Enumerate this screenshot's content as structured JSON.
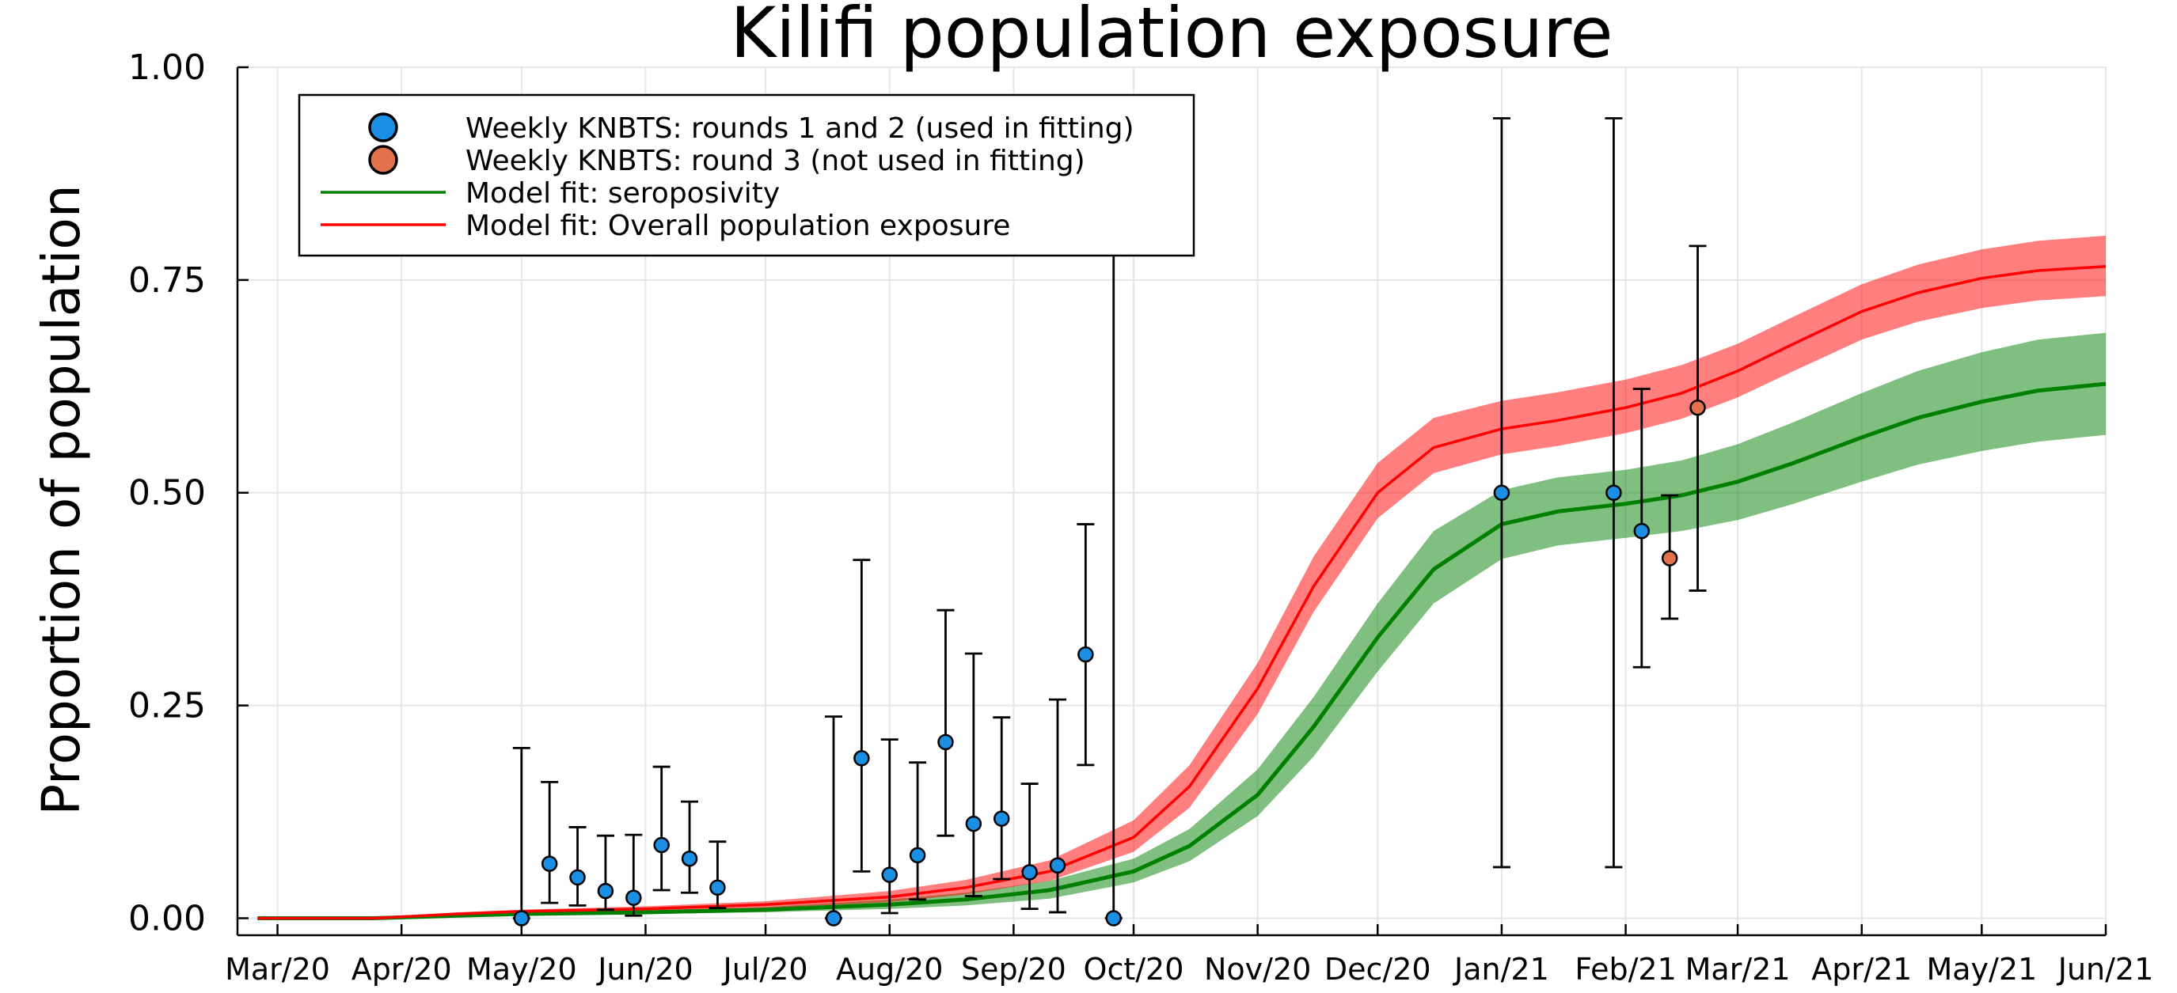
{
  "chart_data": {
    "type": "line",
    "title": "Kilifi population exposure",
    "xlabel": "",
    "ylabel": "Proportion of population",
    "xlim": [
      "2020-02-20",
      "2021-06-01"
    ],
    "ylim": [
      -0.02,
      1.0
    ],
    "x_ticks": [
      "2020-03-01",
      "2020-04-01",
      "2020-05-01",
      "2020-06-01",
      "2020-07-01",
      "2020-08-01",
      "2020-09-01",
      "2020-10-01",
      "2020-11-01",
      "2020-12-01",
      "2021-01-01",
      "2021-02-01",
      "2021-03-01",
      "2021-04-01",
      "2021-05-01",
      "2021-06-01"
    ],
    "x_tick_labels": [
      "Mar/20",
      "Apr/20",
      "May/20",
      "Jun/20",
      "Jul/20",
      "Aug/20",
      "Sep/20",
      "Oct/20",
      "Nov/20",
      "Dec/20",
      "Jan/21",
      "Feb/21",
      "Mar/21",
      "Apr/21",
      "May/21",
      "Jun/21"
    ],
    "y_ticks": [
      0.0,
      0.25,
      0.5,
      0.75,
      1.0
    ],
    "y_tick_labels": [
      "0.00",
      "0.25",
      "0.50",
      "0.75",
      "1.00"
    ],
    "grid": true,
    "legend_position": "top-left",
    "legend": [
      {
        "label": "Weekly KNBTS: rounds 1 and 2 (used in fitting)",
        "kind": "marker",
        "color": "#1a8fe3"
      },
      {
        "label": "Weekly KNBTS: round 3 (not used in fitting)",
        "kind": "marker",
        "color": "#e3714b"
      },
      {
        "label": "Model fit: seroposivity",
        "kind": "line",
        "color": "#008000"
      },
      {
        "label": "Model fit: Overall population exposure",
        "kind": "line",
        "color": "#ff0000"
      }
    ],
    "series": [
      {
        "name": "Weekly KNBTS: rounds 1 and 2 (used in fitting)",
        "kind": "points_with_errorbars",
        "color": "#1a8fe3",
        "points": [
          {
            "x": "2020-05-01",
            "y": 0.0,
            "lo": 0.0,
            "hi": 0.2
          },
          {
            "x": "2020-05-08",
            "y": 0.064,
            "lo": 0.018,
            "hi": 0.16
          },
          {
            "x": "2020-05-15",
            "y": 0.048,
            "lo": 0.015,
            "hi": 0.107
          },
          {
            "x": "2020-05-22",
            "y": 0.032,
            "lo": 0.01,
            "hi": 0.097
          },
          {
            "x": "2020-05-29",
            "y": 0.024,
            "lo": 0.003,
            "hi": 0.098
          },
          {
            "x": "2020-06-05",
            "y": 0.086,
            "lo": 0.033,
            "hi": 0.178
          },
          {
            "x": "2020-06-12",
            "y": 0.07,
            "lo": 0.03,
            "hi": 0.137
          },
          {
            "x": "2020-06-19",
            "y": 0.036,
            "lo": 0.012,
            "hi": 0.09
          },
          {
            "x": "2020-07-18",
            "y": 0.0,
            "lo": 0.0,
            "hi": 0.237
          },
          {
            "x": "2020-07-25",
            "y": 0.188,
            "lo": 0.055,
            "hi": 0.421
          },
          {
            "x": "2020-08-01",
            "y": 0.051,
            "lo": 0.006,
            "hi": 0.21
          },
          {
            "x": "2020-08-08",
            "y": 0.074,
            "lo": 0.022,
            "hi": 0.183
          },
          {
            "x": "2020-08-15",
            "y": 0.207,
            "lo": 0.097,
            "hi": 0.362
          },
          {
            "x": "2020-08-22",
            "y": 0.111,
            "lo": 0.026,
            "hi": 0.311
          },
          {
            "x": "2020-08-29",
            "y": 0.117,
            "lo": 0.046,
            "hi": 0.236
          },
          {
            "x": "2020-09-05",
            "y": 0.054,
            "lo": 0.011,
            "hi": 0.158
          },
          {
            "x": "2020-09-12",
            "y": 0.062,
            "lo": 0.007,
            "hi": 0.257
          },
          {
            "x": "2020-09-19",
            "y": 0.31,
            "lo": 0.18,
            "hi": 0.463
          },
          {
            "x": "2020-09-26",
            "y": 0.0,
            "lo": 0.0,
            "hi": 0.78
          },
          {
            "x": "2021-01-01",
            "y": 0.5,
            "lo": 0.06,
            "hi": 0.94
          },
          {
            "x": "2021-01-29",
            "y": 0.5,
            "lo": 0.06,
            "hi": 0.94
          },
          {
            "x": "2021-02-05",
            "y": 0.455,
            "lo": 0.295,
            "hi": 0.622
          }
        ]
      },
      {
        "name": "Weekly KNBTS: round 3 (not used in fitting)",
        "kind": "points_with_errorbars",
        "color": "#e3714b",
        "points": [
          {
            "x": "2021-02-12",
            "y": 0.423,
            "lo": 0.352,
            "hi": 0.497
          },
          {
            "x": "2021-02-19",
            "y": 0.6,
            "lo": 0.385,
            "hi": 0.79
          }
        ]
      },
      {
        "name": "Model fit: seroposivity",
        "kind": "line_with_band",
        "color": "#008000",
        "band_color": "#008000",
        "points": [
          {
            "x": "2020-02-25",
            "y": 0.0,
            "lo": 0.0,
            "hi": 0.0
          },
          {
            "x": "2020-03-25",
            "y": 0.0,
            "lo": 0.0,
            "hi": 0.0
          },
          {
            "x": "2020-04-15",
            "y": 0.003,
            "lo": 0.002,
            "hi": 0.004
          },
          {
            "x": "2020-05-01",
            "y": 0.005,
            "lo": 0.004,
            "hi": 0.007
          },
          {
            "x": "2020-06-01",
            "y": 0.007,
            "lo": 0.005,
            "hi": 0.009
          },
          {
            "x": "2020-07-01",
            "y": 0.01,
            "lo": 0.007,
            "hi": 0.013
          },
          {
            "x": "2020-08-01",
            "y": 0.016,
            "lo": 0.011,
            "hi": 0.022
          },
          {
            "x": "2020-08-20",
            "y": 0.022,
            "lo": 0.015,
            "hi": 0.03
          },
          {
            "x": "2020-09-10",
            "y": 0.033,
            "lo": 0.023,
            "hi": 0.044
          },
          {
            "x": "2020-10-01",
            "y": 0.055,
            "lo": 0.042,
            "hi": 0.07
          },
          {
            "x": "2020-10-15",
            "y": 0.085,
            "lo": 0.067,
            "hi": 0.105
          },
          {
            "x": "2020-11-01",
            "y": 0.145,
            "lo": 0.12,
            "hi": 0.175
          },
          {
            "x": "2020-11-15",
            "y": 0.225,
            "lo": 0.19,
            "hi": 0.26
          },
          {
            "x": "2020-12-01",
            "y": 0.33,
            "lo": 0.29,
            "hi": 0.37
          },
          {
            "x": "2020-12-15",
            "y": 0.41,
            "lo": 0.37,
            "hi": 0.455
          },
          {
            "x": "2021-01-01",
            "y": 0.463,
            "lo": 0.422,
            "hi": 0.503
          },
          {
            "x": "2021-01-15",
            "y": 0.478,
            "lo": 0.438,
            "hi": 0.518
          },
          {
            "x": "2021-02-01",
            "y": 0.487,
            "lo": 0.447,
            "hi": 0.527
          },
          {
            "x": "2021-02-15",
            "y": 0.497,
            "lo": 0.455,
            "hi": 0.538
          },
          {
            "x": "2021-03-01",
            "y": 0.513,
            "lo": 0.468,
            "hi": 0.557
          },
          {
            "x": "2021-03-15",
            "y": 0.535,
            "lo": 0.487,
            "hi": 0.583
          },
          {
            "x": "2021-04-01",
            "y": 0.565,
            "lo": 0.513,
            "hi": 0.617
          },
          {
            "x": "2021-04-15",
            "y": 0.588,
            "lo": 0.533,
            "hi": 0.643
          },
          {
            "x": "2021-05-01",
            "y": 0.607,
            "lo": 0.549,
            "hi": 0.665
          },
          {
            "x": "2021-05-15",
            "y": 0.62,
            "lo": 0.56,
            "hi": 0.68
          },
          {
            "x": "2021-06-01",
            "y": 0.628,
            "lo": 0.568,
            "hi": 0.688
          }
        ]
      },
      {
        "name": "Model fit: Overall population exposure",
        "kind": "line_with_band",
        "color": "#ff0000",
        "band_color": "#ff0000",
        "points": [
          {
            "x": "2020-02-25",
            "y": 0.0,
            "lo": 0.0,
            "hi": 0.0
          },
          {
            "x": "2020-03-25",
            "y": 0.0,
            "lo": 0.0,
            "hi": 0.001
          },
          {
            "x": "2020-04-15",
            "y": 0.005,
            "lo": 0.003,
            "hi": 0.007
          },
          {
            "x": "2020-05-01",
            "y": 0.008,
            "lo": 0.006,
            "hi": 0.01
          },
          {
            "x": "2020-06-01",
            "y": 0.011,
            "lo": 0.008,
            "hi": 0.014
          },
          {
            "x": "2020-07-01",
            "y": 0.016,
            "lo": 0.012,
            "hi": 0.02
          },
          {
            "x": "2020-08-01",
            "y": 0.025,
            "lo": 0.019,
            "hi": 0.032
          },
          {
            "x": "2020-08-20",
            "y": 0.036,
            "lo": 0.028,
            "hi": 0.045
          },
          {
            "x": "2020-09-10",
            "y": 0.055,
            "lo": 0.044,
            "hi": 0.068
          },
          {
            "x": "2020-10-01",
            "y": 0.095,
            "lo": 0.078,
            "hi": 0.115
          },
          {
            "x": "2020-10-15",
            "y": 0.155,
            "lo": 0.13,
            "hi": 0.18
          },
          {
            "x": "2020-11-01",
            "y": 0.27,
            "lo": 0.24,
            "hi": 0.3
          },
          {
            "x": "2020-11-15",
            "y": 0.39,
            "lo": 0.36,
            "hi": 0.425
          },
          {
            "x": "2020-12-01",
            "y": 0.5,
            "lo": 0.47,
            "hi": 0.535
          },
          {
            "x": "2020-12-15",
            "y": 0.553,
            "lo": 0.523,
            "hi": 0.588
          },
          {
            "x": "2021-01-01",
            "y": 0.575,
            "lo": 0.545,
            "hi": 0.608
          },
          {
            "x": "2021-01-15",
            "y": 0.585,
            "lo": 0.555,
            "hi": 0.618
          },
          {
            "x": "2021-02-01",
            "y": 0.6,
            "lo": 0.57,
            "hi": 0.633
          },
          {
            "x": "2021-02-15",
            "y": 0.617,
            "lo": 0.587,
            "hi": 0.65
          },
          {
            "x": "2021-03-01",
            "y": 0.643,
            "lo": 0.612,
            "hi": 0.675
          },
          {
            "x": "2021-03-15",
            "y": 0.675,
            "lo": 0.643,
            "hi": 0.707
          },
          {
            "x": "2021-04-01",
            "y": 0.713,
            "lo": 0.68,
            "hi": 0.745
          },
          {
            "x": "2021-04-15",
            "y": 0.735,
            "lo": 0.701,
            "hi": 0.768
          },
          {
            "x": "2021-05-01",
            "y": 0.752,
            "lo": 0.717,
            "hi": 0.786
          },
          {
            "x": "2021-05-15",
            "y": 0.761,
            "lo": 0.726,
            "hi": 0.796
          },
          {
            "x": "2021-06-01",
            "y": 0.766,
            "lo": 0.731,
            "hi": 0.802
          }
        ]
      }
    ]
  }
}
